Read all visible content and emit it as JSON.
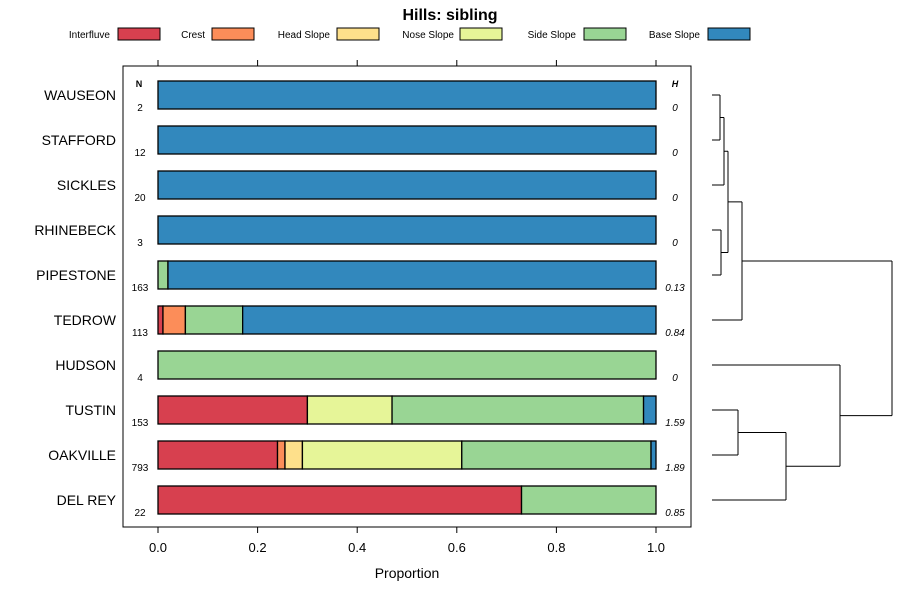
{
  "chart_data": {
    "type": "stacked-bar-horizontal",
    "title": "Hills: sibling",
    "xlabel": "Proportion",
    "xlim": [
      0,
      1
    ],
    "xticks": [
      "0.0",
      "0.2",
      "0.4",
      "0.6",
      "0.8",
      "1.0"
    ],
    "xtick_values": [
      0,
      0.2,
      0.4,
      0.6,
      0.8,
      1.0
    ],
    "n_header": "N",
    "h_header": "H",
    "legend": [
      {
        "name": "Interfluve",
        "color": "#d7404f"
      },
      {
        "name": "Crest",
        "color": "#fc8d59"
      },
      {
        "name": "Head Slope",
        "color": "#fee08b"
      },
      {
        "name": "Nose Slope",
        "color": "#e6f598"
      },
      {
        "name": "Side Slope",
        "color": "#99d594"
      },
      {
        "name": "Base Slope",
        "color": "#3288bd"
      }
    ],
    "rows": [
      {
        "name": "WAUSEON",
        "n": "2",
        "h": "0",
        "values": [
          0,
          0,
          0,
          0,
          0,
          1.0
        ]
      },
      {
        "name": "STAFFORD",
        "n": "12",
        "h": "0",
        "values": [
          0,
          0,
          0,
          0,
          0,
          1.0
        ]
      },
      {
        "name": "SICKLES",
        "n": "20",
        "h": "0",
        "values": [
          0,
          0,
          0,
          0,
          0,
          1.0
        ]
      },
      {
        "name": "RHINEBECK",
        "n": "3",
        "h": "0",
        "values": [
          0,
          0,
          0,
          0,
          0,
          1.0
        ]
      },
      {
        "name": "PIPESTONE",
        "n": "163",
        "h": "0.13",
        "values": [
          0,
          0,
          0,
          0,
          0.02,
          0.98
        ]
      },
      {
        "name": "TEDROW",
        "n": "113",
        "h": "0.84",
        "values": [
          0.01,
          0.045,
          0,
          0,
          0.115,
          0.83
        ]
      },
      {
        "name": "HUDSON",
        "n": "4",
        "h": "0",
        "values": [
          0,
          0,
          0,
          0,
          1.0,
          0
        ]
      },
      {
        "name": "TUSTIN",
        "n": "153",
        "h": "1.59",
        "values": [
          0.3,
          0,
          0,
          0.17,
          0.505,
          0.025
        ]
      },
      {
        "name": "OAKVILLE",
        "n": "793",
        "h": "1.89",
        "values": [
          0.24,
          0.015,
          0.035,
          0.32,
          0.38,
          0.01
        ]
      },
      {
        "name": "DEL REY",
        "n": "22",
        "h": "0.85",
        "values": [
          0.73,
          0,
          0,
          0,
          0.27,
          0
        ]
      }
    ]
  }
}
